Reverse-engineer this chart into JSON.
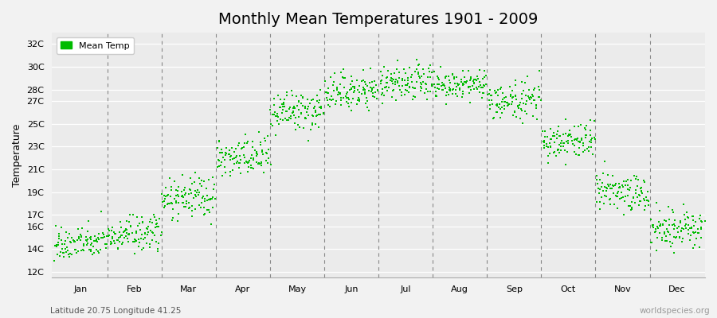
{
  "title": "Monthly Mean Temperatures 1901 - 2009",
  "ylabel": "Temperature",
  "xlabel_bottom": "Latitude 20.75 Longitude 41.25",
  "watermark": "worldspecies.org",
  "dot_color": "#00bb00",
  "bg_color": "#f2f2f2",
  "plot_bg": "#ebebeb",
  "grid_color": "#ffffff",
  "dashed_color": "#888888",
  "legend_label": "Mean Temp",
  "yticks": [
    12,
    14,
    16,
    17,
    19,
    21,
    23,
    25,
    27,
    28,
    30,
    32
  ],
  "ylim": [
    11.5,
    33
  ],
  "months": [
    "Jan",
    "Feb",
    "Mar",
    "Apr",
    "May",
    "Jun",
    "Jul",
    "Aug",
    "Sep",
    "Oct",
    "Nov",
    "Dec"
  ],
  "mean_temps": [
    14.5,
    15.3,
    18.5,
    22.0,
    26.0,
    27.8,
    28.5,
    28.3,
    27.0,
    23.5,
    19.0,
    15.8
  ],
  "std_temps": [
    0.7,
    0.8,
    0.9,
    0.9,
    0.9,
    0.8,
    0.8,
    0.7,
    0.8,
    0.8,
    0.9,
    0.8
  ],
  "n_years": 109,
  "start_year": 1901,
  "seed": 42,
  "dot_size": 4,
  "title_fontsize": 14,
  "axis_fontsize": 8,
  "ylabel_fontsize": 9
}
